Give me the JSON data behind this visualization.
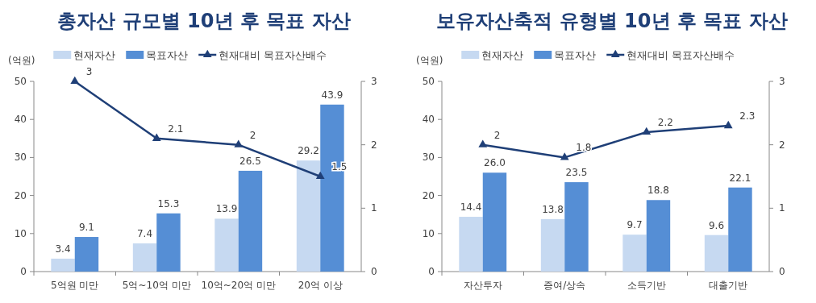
{
  "chart_data": [
    {
      "type": "bar",
      "title": "총자산 규모별 10년 후 목표 자산",
      "ylabel": "(억원)",
      "categories": [
        "5억원 미만",
        "5억~10억 미만",
        "10억~20억 미만",
        "20억 이상"
      ],
      "series": [
        {
          "name": "현재자산",
          "color": "#c6d9f1",
          "values": [
            3.4,
            7.4,
            13.9,
            29.2
          ]
        },
        {
          "name": "목표자산",
          "color": "#558ed5",
          "values": [
            9.1,
            15.3,
            26.5,
            43.9
          ]
        },
        {
          "name": "현재대비 목표자산배수",
          "color": "#1f3f77",
          "type": "line",
          "axis": "y2",
          "values": [
            3,
            2.1,
            2,
            1.5
          ]
        }
      ],
      "ylim": [
        0,
        50
      ],
      "yticks": [
        0,
        10,
        20,
        30,
        40,
        50
      ],
      "y2lim": [
        0,
        3
      ],
      "y2ticks": [
        0,
        1,
        2,
        3
      ],
      "data_labels": true,
      "legend": "top",
      "marker": "triangle"
    },
    {
      "type": "bar",
      "title": "보유자산축적 유형별 10년 후 목표 자산",
      "ylabel": "(억원)",
      "categories": [
        "자산투자",
        "증여/상속",
        "소득기반",
        "대출기반"
      ],
      "series": [
        {
          "name": "현재자산",
          "color": "#c6d9f1",
          "values": [
            14.4,
            13.8,
            9.7,
            9.6
          ]
        },
        {
          "name": "목표자산",
          "color": "#558ed5",
          "values": [
            26.0,
            23.5,
            18.8,
            22.1
          ],
          "value_labels": [
            "26.0",
            "23.5",
            "18.8",
            "22.1"
          ]
        },
        {
          "name": "현재대비 목표자산배수",
          "color": "#1f3f77",
          "type": "line",
          "axis": "y2",
          "values": [
            2,
            1.8,
            2.2,
            2.3
          ]
        }
      ],
      "ylim": [
        0,
        50
      ],
      "yticks": [
        0,
        10,
        20,
        30,
        40,
        50
      ],
      "y2lim": [
        0,
        3
      ],
      "y2ticks": [
        0,
        1,
        2,
        3
      ],
      "data_labels": true,
      "legend": "top",
      "marker": "triangle"
    }
  ]
}
